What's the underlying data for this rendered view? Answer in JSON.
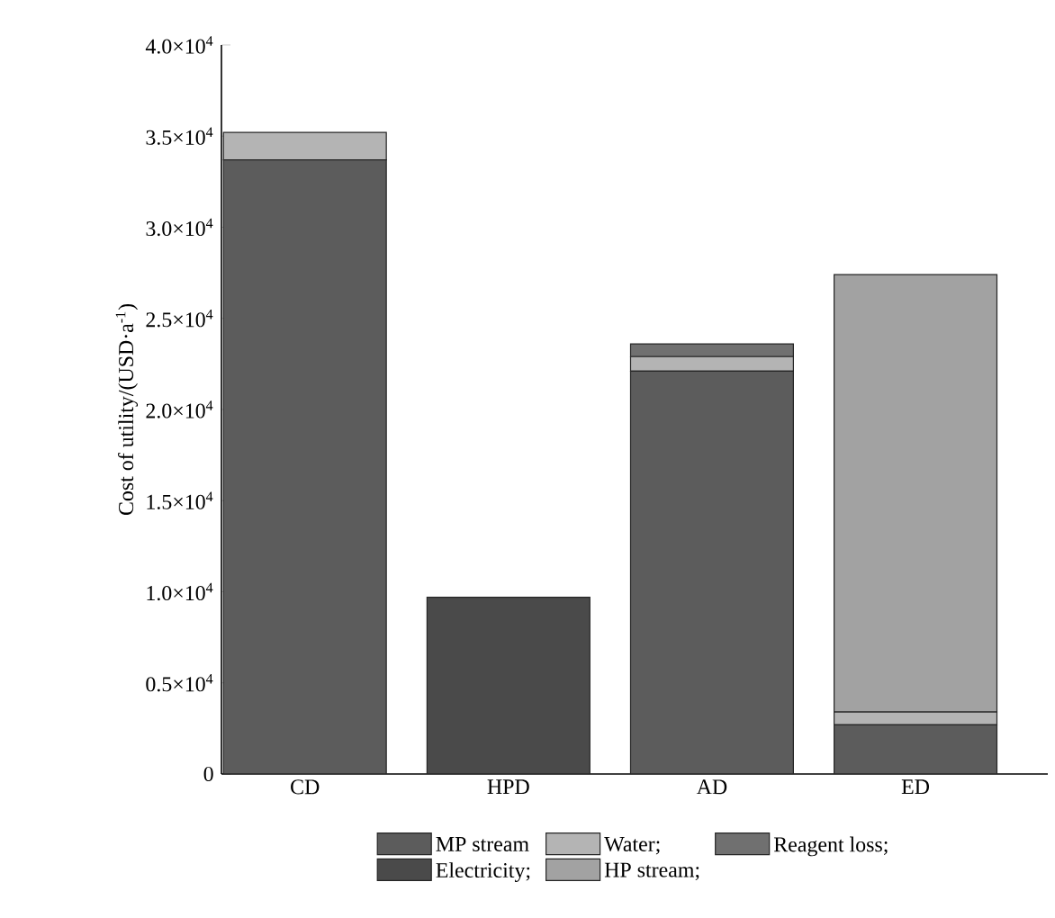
{
  "chart_data": {
    "type": "bar",
    "stacked": true,
    "ylabel": "Cost of utility/(USD·a$^{-1}$)",
    "categories": [
      "CD",
      "HPD",
      "AD",
      "ED"
    ],
    "series": [
      {
        "name": "MP stream",
        "color": "#5c5c5c",
        "values": [
          33700,
          0,
          22100,
          2700
        ]
      },
      {
        "name": "Water;",
        "color": "#b4b4b4",
        "values": [
          1500,
          0,
          800,
          700
        ]
      },
      {
        "name": "Reagent loss;",
        "color": "#707070",
        "values": [
          0,
          0,
          700,
          0
        ]
      },
      {
        "name": "Electricity;",
        "color": "#4a4a4a",
        "values": [
          0,
          9700,
          0,
          0
        ]
      },
      {
        "name": "HP stream;",
        "color": "#a2a2a2",
        "values": [
          0,
          0,
          0,
          24000
        ]
      }
    ],
    "ylim": [
      0,
      40000
    ],
    "yticks": [
      0,
      {
        "value": 5000,
        "label": "0.5×10$^{4}$"
      },
      {
        "value": 10000,
        "label": "1.0×10$^{4}$"
      },
      {
        "value": 15000,
        "label": "1.5×10$^{4}$"
      },
      {
        "value": 20000,
        "label": "2.0×10$^{4}$"
      },
      {
        "value": 25000,
        "label": "2.5×10$^{4}$"
      },
      {
        "value": 30000,
        "label": "3.0×10$^{4}$"
      },
      {
        "value": 35000,
        "label": "3.5×10$^{4}$"
      },
      {
        "value": 40000,
        "label": "4.0×10$^{4}$"
      }
    ],
    "legend": "bottom",
    "grid": false
  }
}
